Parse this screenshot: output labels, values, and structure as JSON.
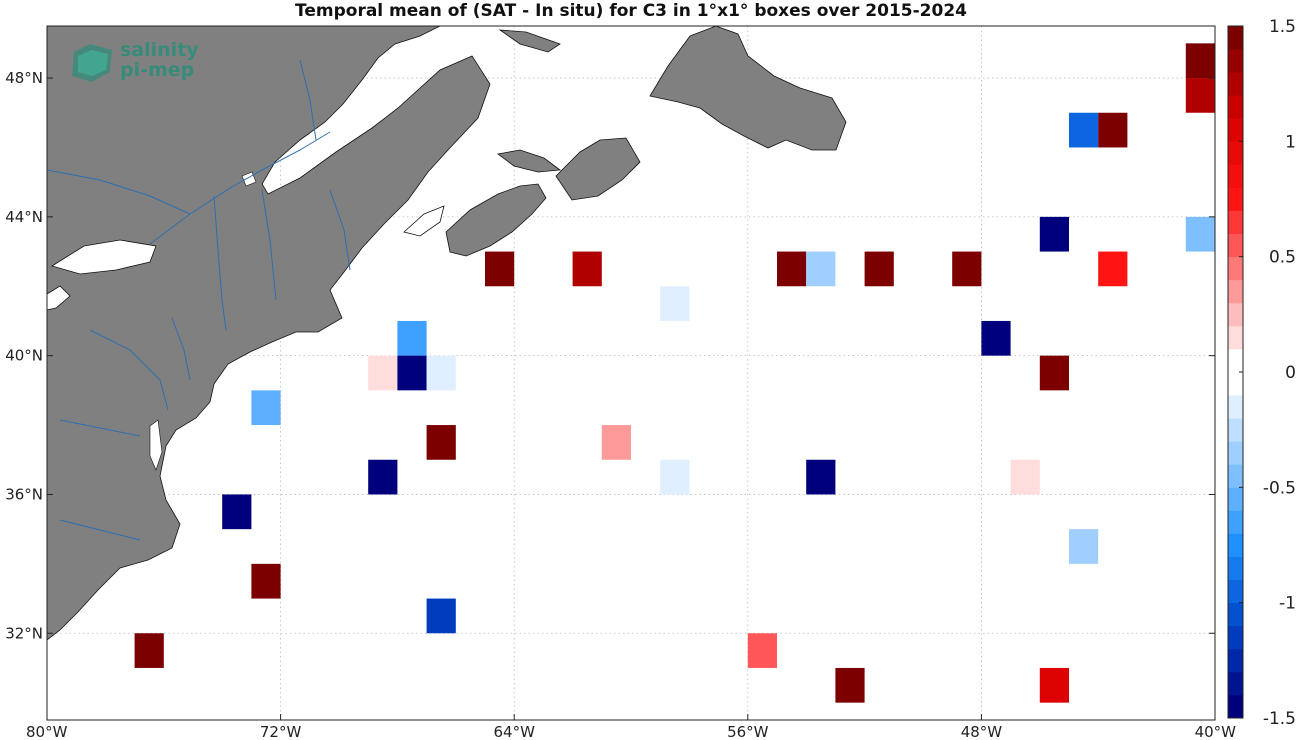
{
  "title": "Temporal mean of (SAT - In situ) for C3 in 1°x1° boxes over 2015-2024",
  "logo": {
    "line1": "salinity",
    "line2": "pi-mep"
  },
  "map": {
    "lon_range": [
      -80,
      -40
    ],
    "lat_range": [
      29.5,
      49.5
    ],
    "lon_ticks": [
      {
        "value": -80,
        "label": "80°W"
      },
      {
        "value": -72,
        "label": "72°W"
      },
      {
        "value": -64,
        "label": "64°W"
      },
      {
        "value": -56,
        "label": "56°W"
      },
      {
        "value": -48,
        "label": "48°W"
      },
      {
        "value": -40,
        "label": "40°W"
      }
    ],
    "lat_ticks": [
      {
        "value": 32,
        "label": "32°N"
      },
      {
        "value": 36,
        "label": "36°N"
      },
      {
        "value": 40,
        "label": "40°N"
      },
      {
        "value": 44,
        "label": "44°N"
      },
      {
        "value": 48,
        "label": "48°N"
      }
    ],
    "grid": true,
    "land_color": "#808080",
    "river_color": "#2f6fb0"
  },
  "colorbar": {
    "range": [
      -1.5,
      1.5
    ],
    "steps": 30,
    "ticks": [
      {
        "value": 1.5,
        "label": "1.5"
      },
      {
        "value": 1,
        "label": "1"
      },
      {
        "value": 0.5,
        "label": "0.5"
      },
      {
        "value": 0,
        "label": "0"
      },
      {
        "value": -0.5,
        "label": "-0.5"
      },
      {
        "value": -1,
        "label": "-1"
      },
      {
        "value": -1.5,
        "label": "-1.5"
      }
    ]
  },
  "boxes": [
    {
      "lon": -41,
      "lat": 48,
      "value": 1.5
    },
    {
      "lon": -41,
      "lat": 47,
      "value": 1.2
    },
    {
      "lon": -45,
      "lat": 46,
      "value": -1.0
    },
    {
      "lon": -44,
      "lat": 46,
      "value": 1.5
    },
    {
      "lon": -46,
      "lat": 43,
      "value": -1.5
    },
    {
      "lon": -41,
      "lat": 43,
      "value": -0.45
    },
    {
      "lon": -65,
      "lat": 42,
      "value": 1.5
    },
    {
      "lon": -62,
      "lat": 42,
      "value": 1.2
    },
    {
      "lon": -55,
      "lat": 42,
      "value": 1.5
    },
    {
      "lon": -54,
      "lat": 42,
      "value": -0.35
    },
    {
      "lon": -52,
      "lat": 42,
      "value": 1.5
    },
    {
      "lon": -49,
      "lat": 42,
      "value": 1.5
    },
    {
      "lon": -44,
      "lat": 42,
      "value": 0.7
    },
    {
      "lon": -59,
      "lat": 41,
      "value": -0.2
    },
    {
      "lon": -68,
      "lat": 40,
      "value": -0.7
    },
    {
      "lon": -48,
      "lat": 40,
      "value": -1.5
    },
    {
      "lon": -69,
      "lat": 39,
      "value": 0.15
    },
    {
      "lon": -68,
      "lat": 39,
      "value": -1.5
    },
    {
      "lon": -67,
      "lat": 39,
      "value": -0.1
    },
    {
      "lon": -46,
      "lat": 39,
      "value": 1.5
    },
    {
      "lon": -73,
      "lat": 38,
      "value": -0.6
    },
    {
      "lon": -67,
      "lat": 37,
      "value": 1.5
    },
    {
      "lon": -61,
      "lat": 37,
      "value": 0.3
    },
    {
      "lon": -69,
      "lat": 36,
      "value": -1.5
    },
    {
      "lon": -59,
      "lat": 36,
      "value": -0.1
    },
    {
      "lon": -54,
      "lat": 36,
      "value": -1.5
    },
    {
      "lon": -47,
      "lat": 36,
      "value": 0.1
    },
    {
      "lon": -74,
      "lat": 35,
      "value": -1.5
    },
    {
      "lon": -45,
      "lat": 34,
      "value": -0.35
    },
    {
      "lon": -73,
      "lat": 33,
      "value": 1.5
    },
    {
      "lon": -67,
      "lat": 32,
      "value": -1.1
    },
    {
      "lon": -77,
      "lat": 31,
      "value": 1.5
    },
    {
      "lon": -56,
      "lat": 31,
      "value": 0.5
    },
    {
      "lon": -53,
      "lat": 30,
      "value": 1.5
    },
    {
      "lon": -46,
      "lat": 30,
      "value": 1.0
    }
  ]
}
